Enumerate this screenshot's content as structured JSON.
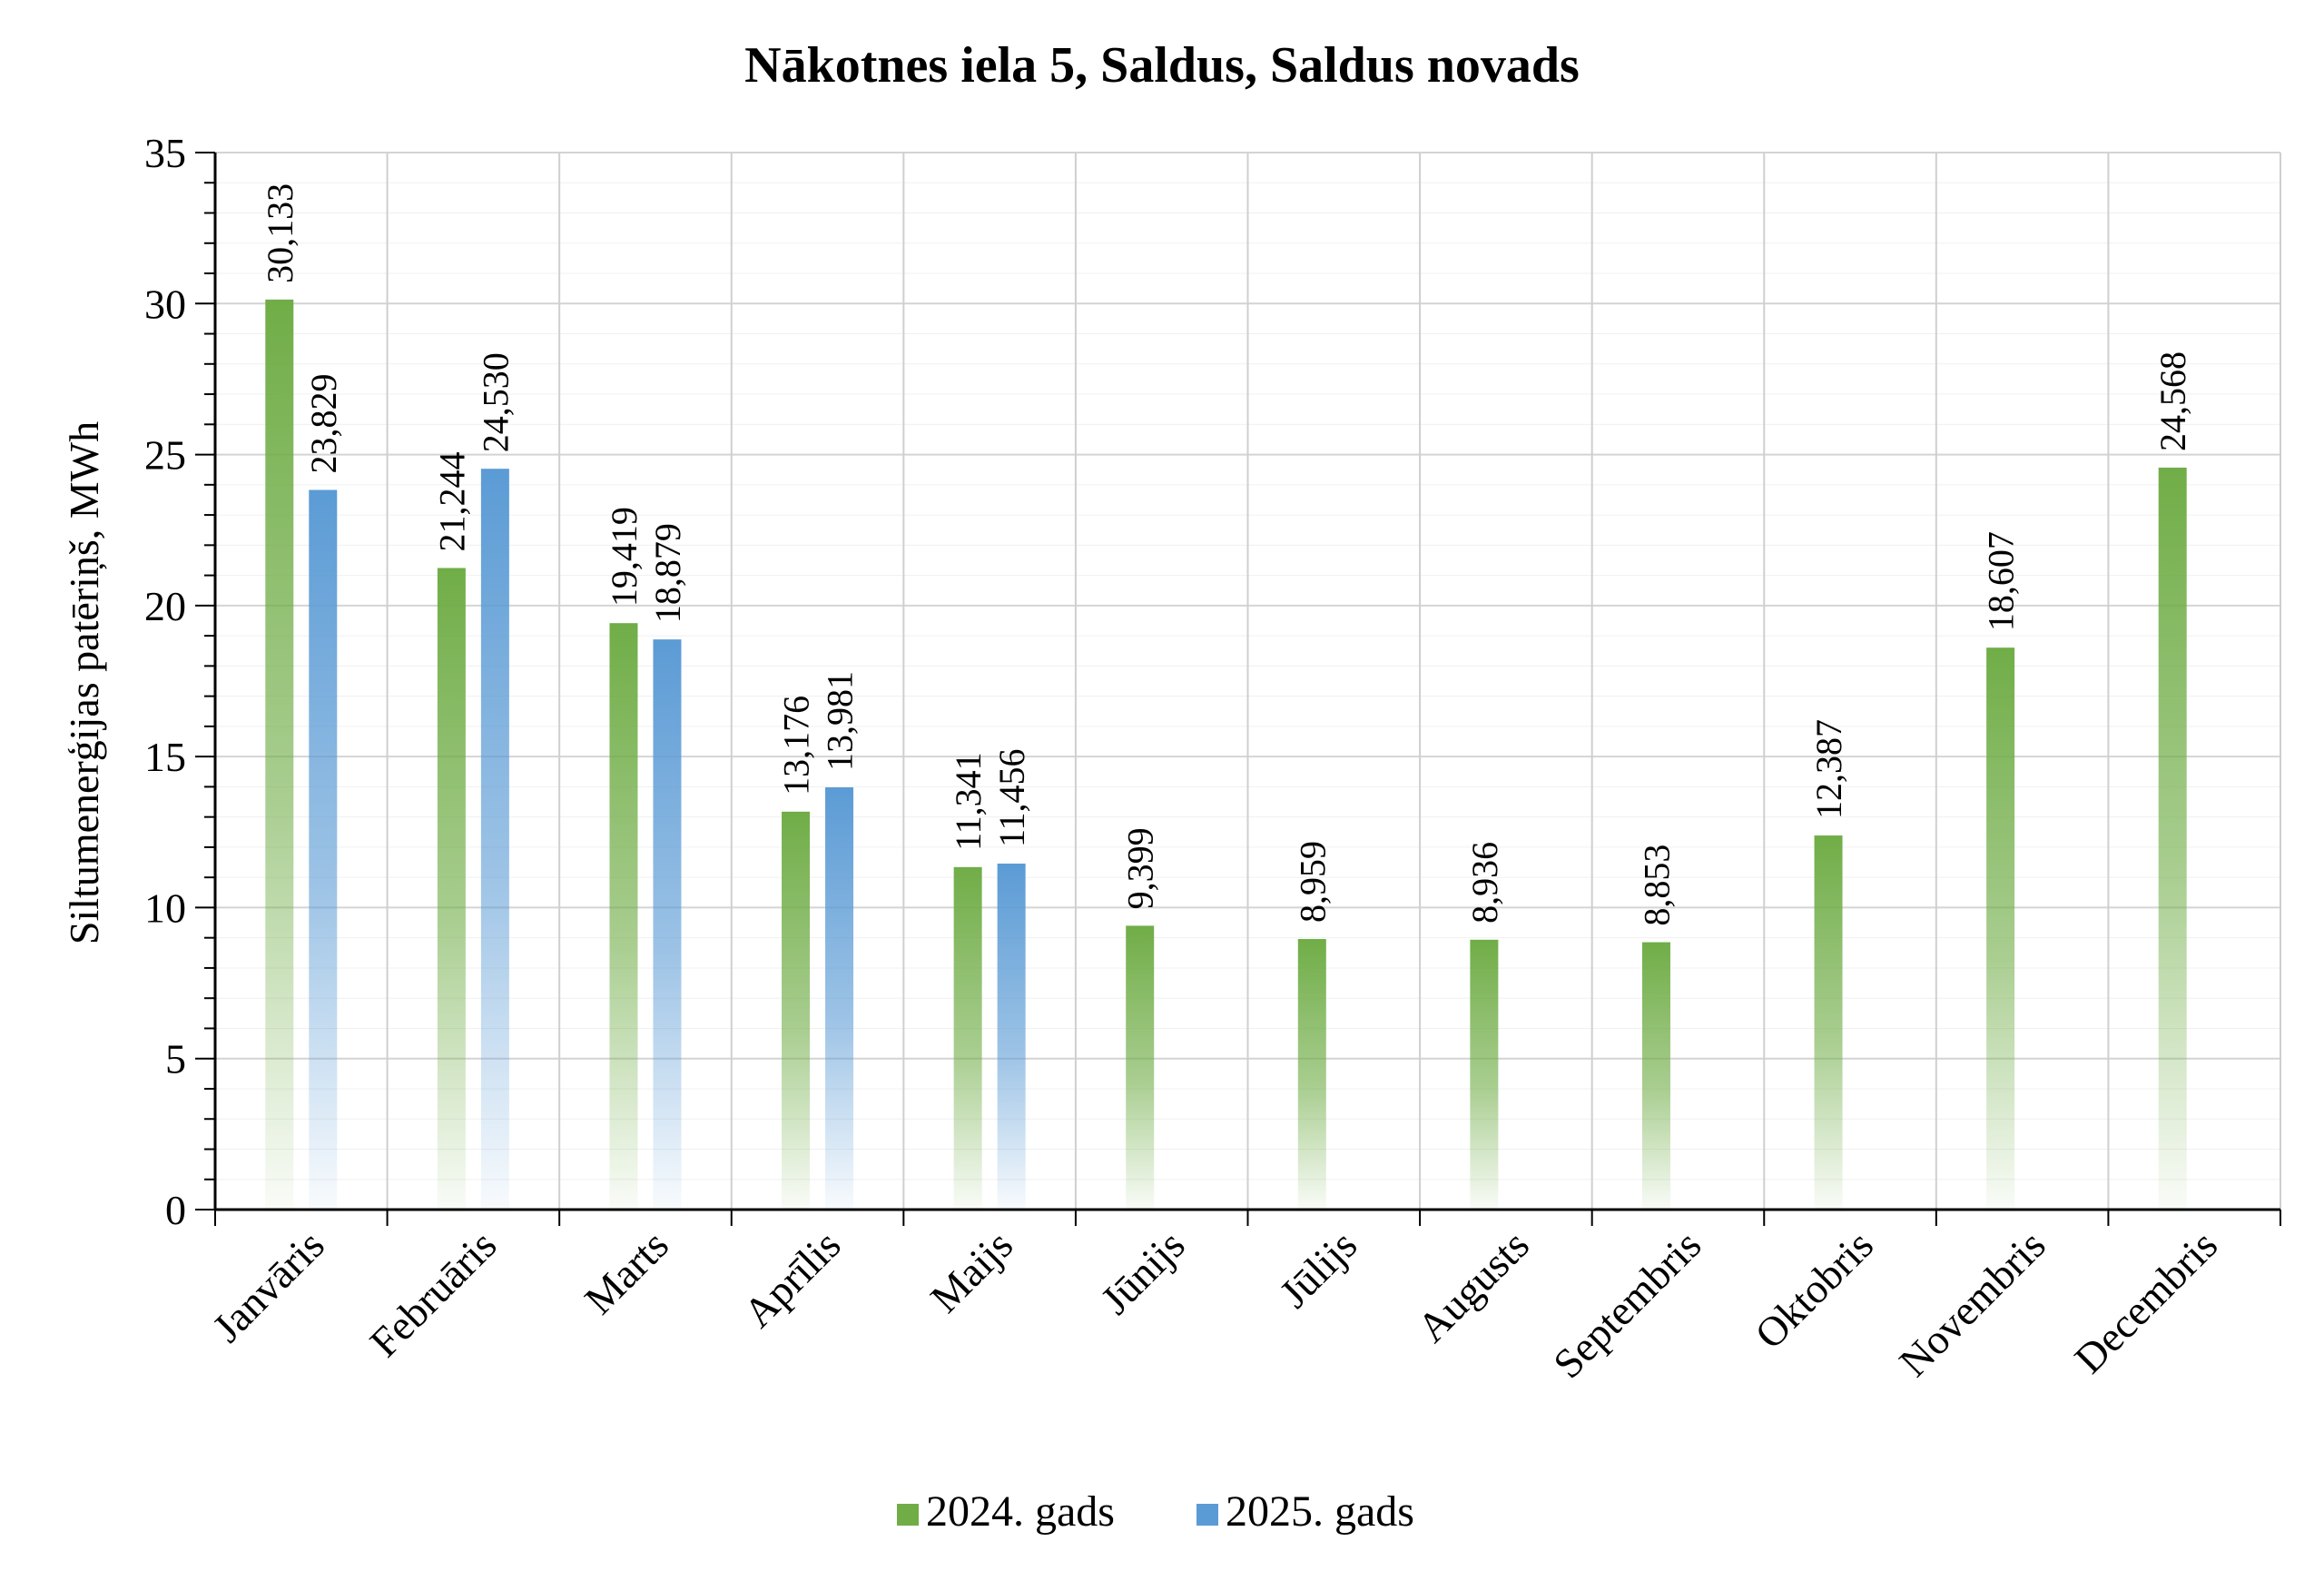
{
  "chart_data": {
    "type": "bar",
    "title": "Nākotnes iela 5, Saldus, Saldus novads",
    "xlabel": "",
    "ylabel": "Siltumenerģijas patēriņš, MWh",
    "ylim": [
      0,
      35
    ],
    "yticks": [
      0,
      5,
      10,
      15,
      20,
      25,
      30,
      35
    ],
    "grid": true,
    "legend_position": "bottom",
    "categories": [
      "Janvāris",
      "Februāris",
      "Marts",
      "Aprīlis",
      "Maijs",
      "Jūnijs",
      "Jūlijs",
      "Augusts",
      "Septembris",
      "Oktobris",
      "Novembris",
      "Decembris"
    ],
    "series": [
      {
        "name": "2024. gads",
        "color": "#70AD47",
        "values": [
          30.133,
          21.244,
          19.419,
          13.176,
          11.341,
          9.399,
          8.959,
          8.936,
          8.853,
          12.387,
          18.607,
          24.568
        ],
        "labels": [
          "30,133",
          "21,244",
          "19,419",
          "13,176",
          "11,341",
          "9,399",
          "8,959",
          "8,936",
          "8,853",
          "12,387",
          "18,607",
          "24,568"
        ]
      },
      {
        "name": "2025. gads",
        "color": "#5B9BD5",
        "values": [
          23.829,
          24.53,
          18.879,
          13.981,
          11.456,
          null,
          null,
          null,
          null,
          null,
          null,
          null
        ],
        "labels": [
          "23,829",
          "24,530",
          "18,879",
          "13,981",
          "11,456",
          "",
          "",
          "",
          "",
          "",
          "",
          ""
        ]
      }
    ]
  }
}
